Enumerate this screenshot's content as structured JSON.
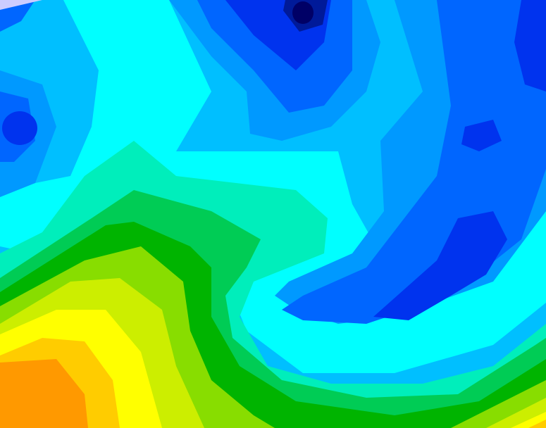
{
  "map": {
    "type": "filled-contour",
    "palette": {
      "light_blue": "#00bfff",
      "cyan": "#00ffff",
      "aquamarine": "#00eebb",
      "medium_green": "#00cc55",
      "green": "#00b400",
      "yellow_green": "#88dd00",
      "lime": "#ccee00",
      "yellow": "#ffff00",
      "gold": "#ffcc00",
      "orange": "#ff9900",
      "blue": "#0099ff",
      "royal_blue": "#0066ff",
      "deep_blue": "#0033ee",
      "navy": "#001a99",
      "darkest": "#000066",
      "lavender": "#ccccff"
    }
  }
}
